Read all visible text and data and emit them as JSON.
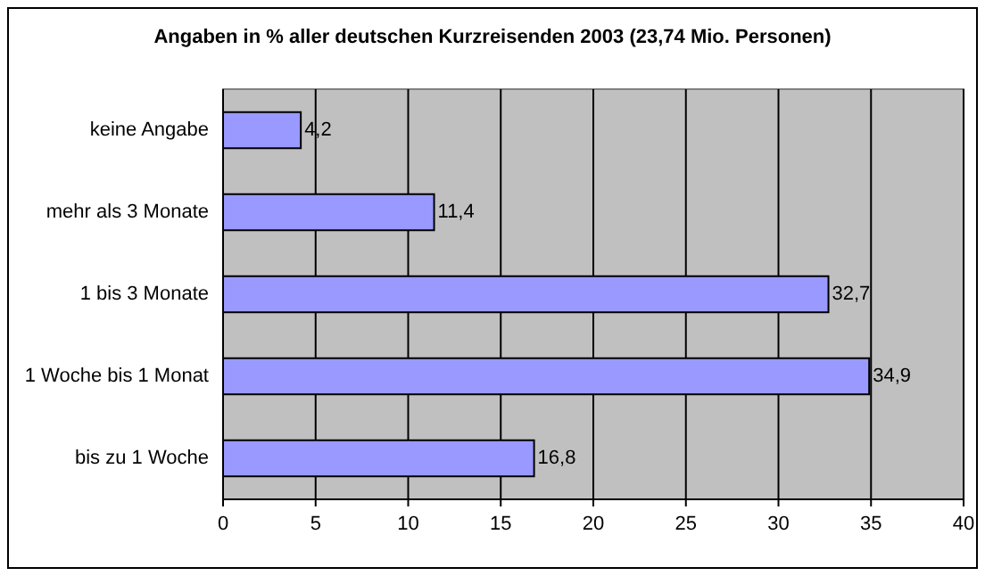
{
  "chart_data": {
    "type": "bar",
    "orientation": "horizontal",
    "title": "Angaben in % aller deutschen Kurzreisenden 2003 (23,74 Mio. Personen)",
    "categories": [
      "keine Angabe",
      "mehr als 3 Monate",
      "1 bis 3 Monate",
      "1 Woche bis 1 Monat",
      "bis zu 1 Woche"
    ],
    "values": [
      4.2,
      11.4,
      32.7,
      34.9,
      16.8
    ],
    "value_labels": [
      "4,2",
      "11,4",
      "32,7",
      "34,9",
      "16,8"
    ],
    "color": "#9999ff",
    "xlim": [
      0,
      40
    ],
    "xticks": [
      0,
      5,
      10,
      15,
      20,
      25,
      30,
      35,
      40
    ],
    "grid": "x"
  }
}
